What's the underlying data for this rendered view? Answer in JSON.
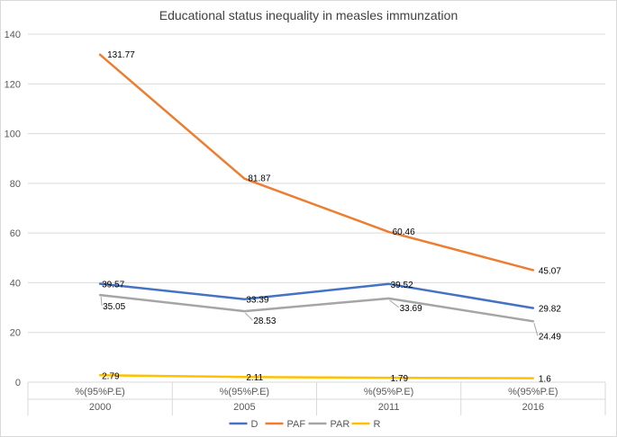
{
  "chart_data": {
    "type": "line",
    "title": "Educational status inequality in measles immunzation",
    "xlabel": "",
    "ylabel": "",
    "ylim": [
      0,
      140
    ],
    "yticks": [
      0,
      20,
      40,
      60,
      80,
      100,
      120,
      140
    ],
    "categories": [
      {
        "sub": "%(95%P.E)",
        "main": "2000"
      },
      {
        "sub": "%(95%P.E)",
        "main": "2005"
      },
      {
        "sub": "%(95%P.E)",
        "main": "2011"
      },
      {
        "sub": "%(95%P.E)",
        "main": "2016"
      }
    ],
    "series": [
      {
        "name": "D",
        "color": "#4472C4",
        "values": [
          39.57,
          33.39,
          39.52,
          29.82
        ],
        "labels": [
          "39.57",
          "33.39",
          "39.52",
          "29.82"
        ]
      },
      {
        "name": "PAF",
        "color": "#ED7D31",
        "values": [
          131.77,
          81.87,
          60.46,
          45.07
        ],
        "labels": [
          "131.77",
          "81.87",
          "60.46",
          "45.07"
        ]
      },
      {
        "name": "PAR",
        "color": "#A5A5A5",
        "values": [
          35.05,
          28.53,
          33.69,
          24.49
        ],
        "labels": [
          "35.05",
          "28.53",
          "33.69",
          "24.49"
        ]
      },
      {
        "name": "R",
        "color": "#FFC000",
        "values": [
          2.79,
          2.11,
          1.79,
          1.6
        ],
        "labels": [
          "2.79",
          "2.11",
          "1.79",
          "1.6"
        ]
      }
    ],
    "grid": true,
    "legend_position": "bottom"
  }
}
